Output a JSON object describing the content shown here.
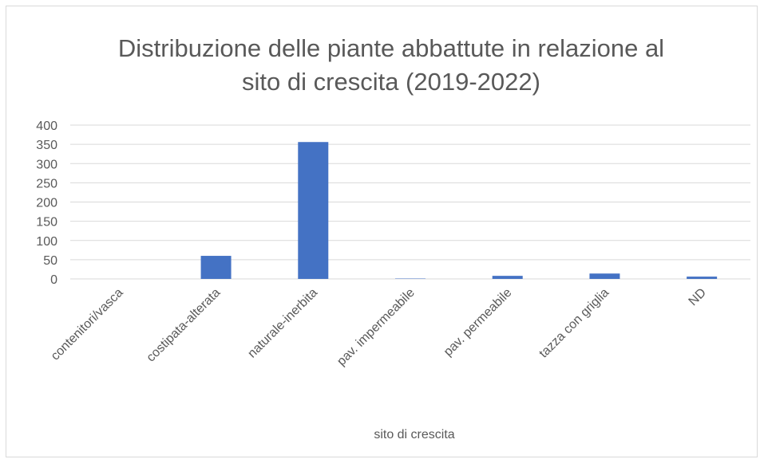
{
  "chart_data": {
    "type": "bar",
    "title": "Distribuzione delle piante abbattute in relazione al sito di crescita (2019-2022)",
    "x_label": "sito di crescita",
    "categories": [
      "contenitori/vasca",
      "costipata-alterata",
      "naturale-inerbita",
      "pav. impermeabile",
      "pav. permeabile",
      "tazza con griglia",
      "ND"
    ],
    "values": [
      0,
      60,
      356,
      1,
      8,
      14,
      6
    ],
    "color": "#4472c4",
    "ylim": [
      0,
      400
    ],
    "yticks": [
      0,
      50,
      100,
      150,
      200,
      250,
      300,
      350,
      400
    ],
    "grid": true
  }
}
